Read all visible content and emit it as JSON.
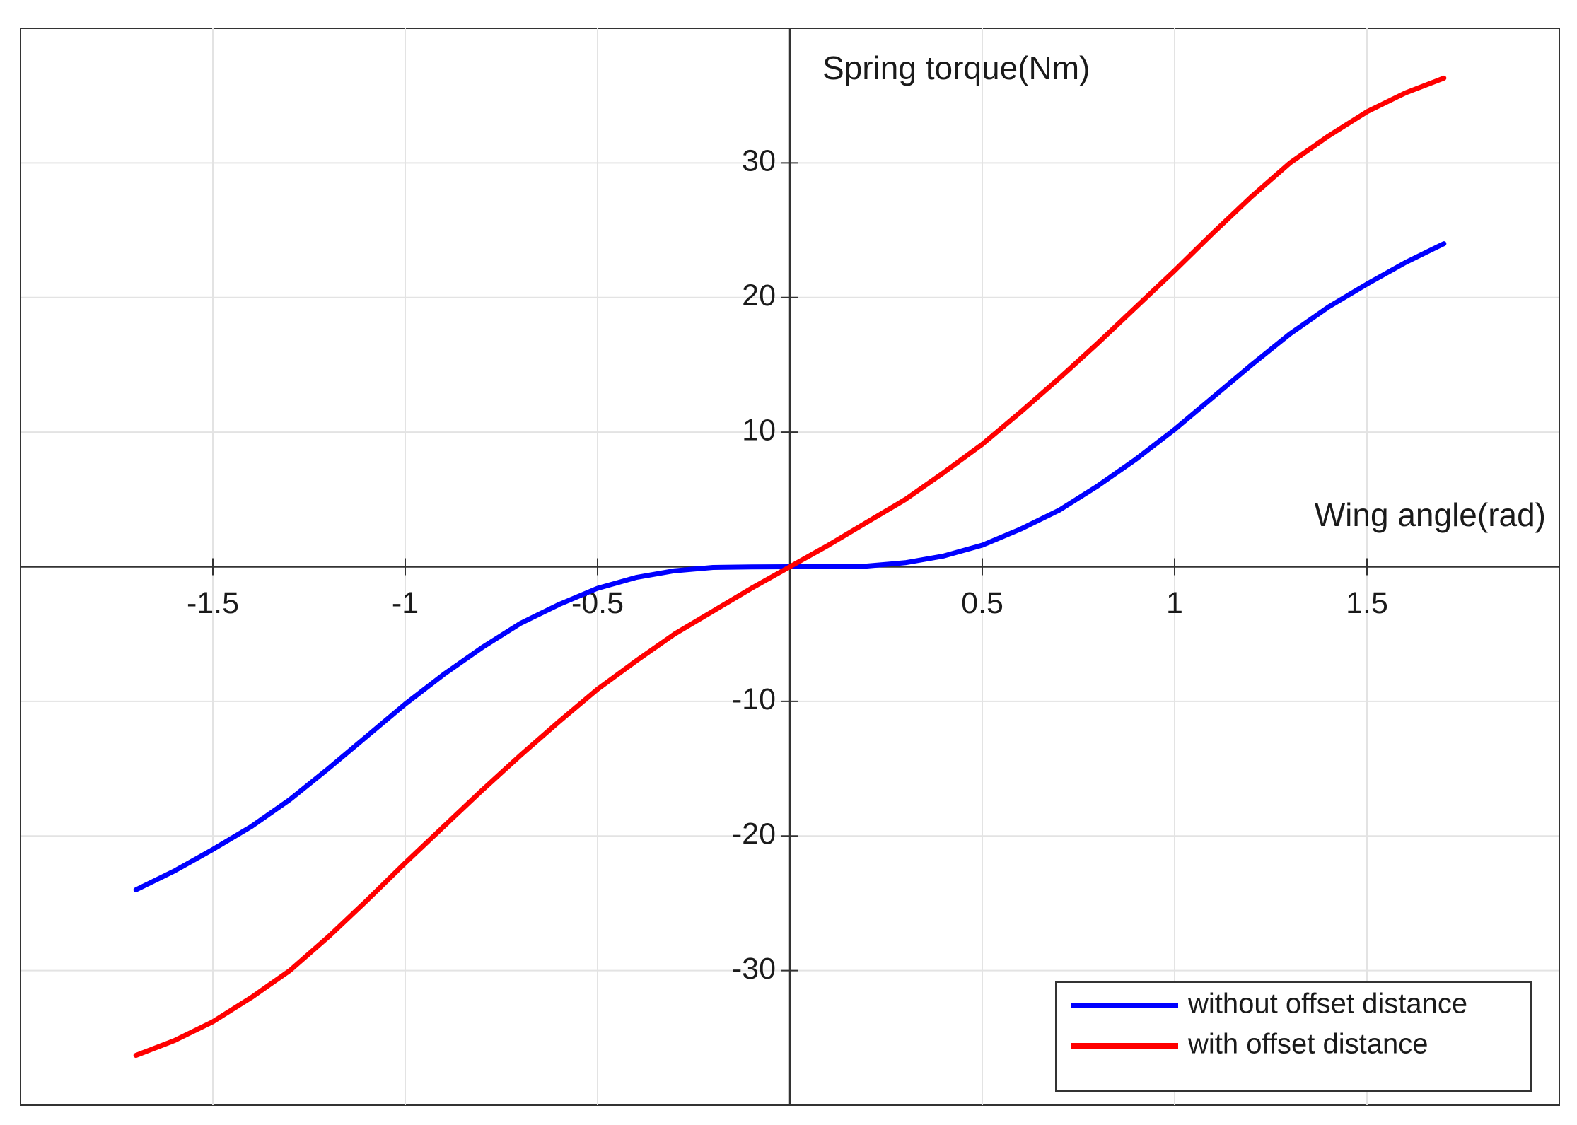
{
  "chart_data": {
    "type": "line",
    "xlabel": "Wing angle(rad)",
    "ylabel": "Spring torque(Nm)",
    "x": [
      -1.7,
      -1.6,
      -1.5,
      -1.4,
      -1.3,
      -1.2,
      -1.1,
      -1.0,
      -0.9,
      -0.8,
      -0.7,
      -0.6,
      -0.5,
      -0.4,
      -0.3,
      -0.2,
      -0.1,
      0,
      0.1,
      0.2,
      0.3,
      0.4,
      0.5,
      0.6,
      0.7,
      0.8,
      0.9,
      1.0,
      1.1,
      1.2,
      1.3,
      1.4,
      1.5,
      1.6,
      1.7
    ],
    "series": [
      {
        "name": "without offset distance",
        "color": "#0000ff",
        "values": [
          -24.0,
          -22.6,
          -21.0,
          -19.3,
          -17.3,
          -15.0,
          -12.6,
          -10.2,
          -8.0,
          -6.0,
          -4.2,
          -2.8,
          -1.6,
          -0.8,
          -0.3,
          -0.05,
          -0.01,
          0,
          0.01,
          0.05,
          0.3,
          0.8,
          1.6,
          2.8,
          4.2,
          6.0,
          8.0,
          10.2,
          12.6,
          15.0,
          17.3,
          19.3,
          21.0,
          22.6,
          24.0
        ]
      },
      {
        "name": "with offset distance",
        "color": "#ff0000",
        "values": [
          -36.3,
          -35.2,
          -33.8,
          -32.0,
          -30.0,
          -27.5,
          -24.8,
          -22.0,
          -19.3,
          -16.6,
          -14.0,
          -11.5,
          -9.1,
          -7.0,
          -5.0,
          -3.3,
          -1.6,
          0,
          1.6,
          3.3,
          5.0,
          7.0,
          9.1,
          11.5,
          14.0,
          16.6,
          19.3,
          22.0,
          24.8,
          27.5,
          30.0,
          32.0,
          33.8,
          35.2,
          36.3
        ]
      }
    ],
    "xlim": [
      -2,
      2
    ],
    "ylim": [
      -40,
      40
    ],
    "xticks": [
      -1.5,
      -1,
      -0.5,
      0.5,
      1,
      1.5
    ],
    "yticks": [
      -30,
      -20,
      -10,
      10,
      20,
      30
    ],
    "grid": true,
    "legend": "lower right"
  }
}
